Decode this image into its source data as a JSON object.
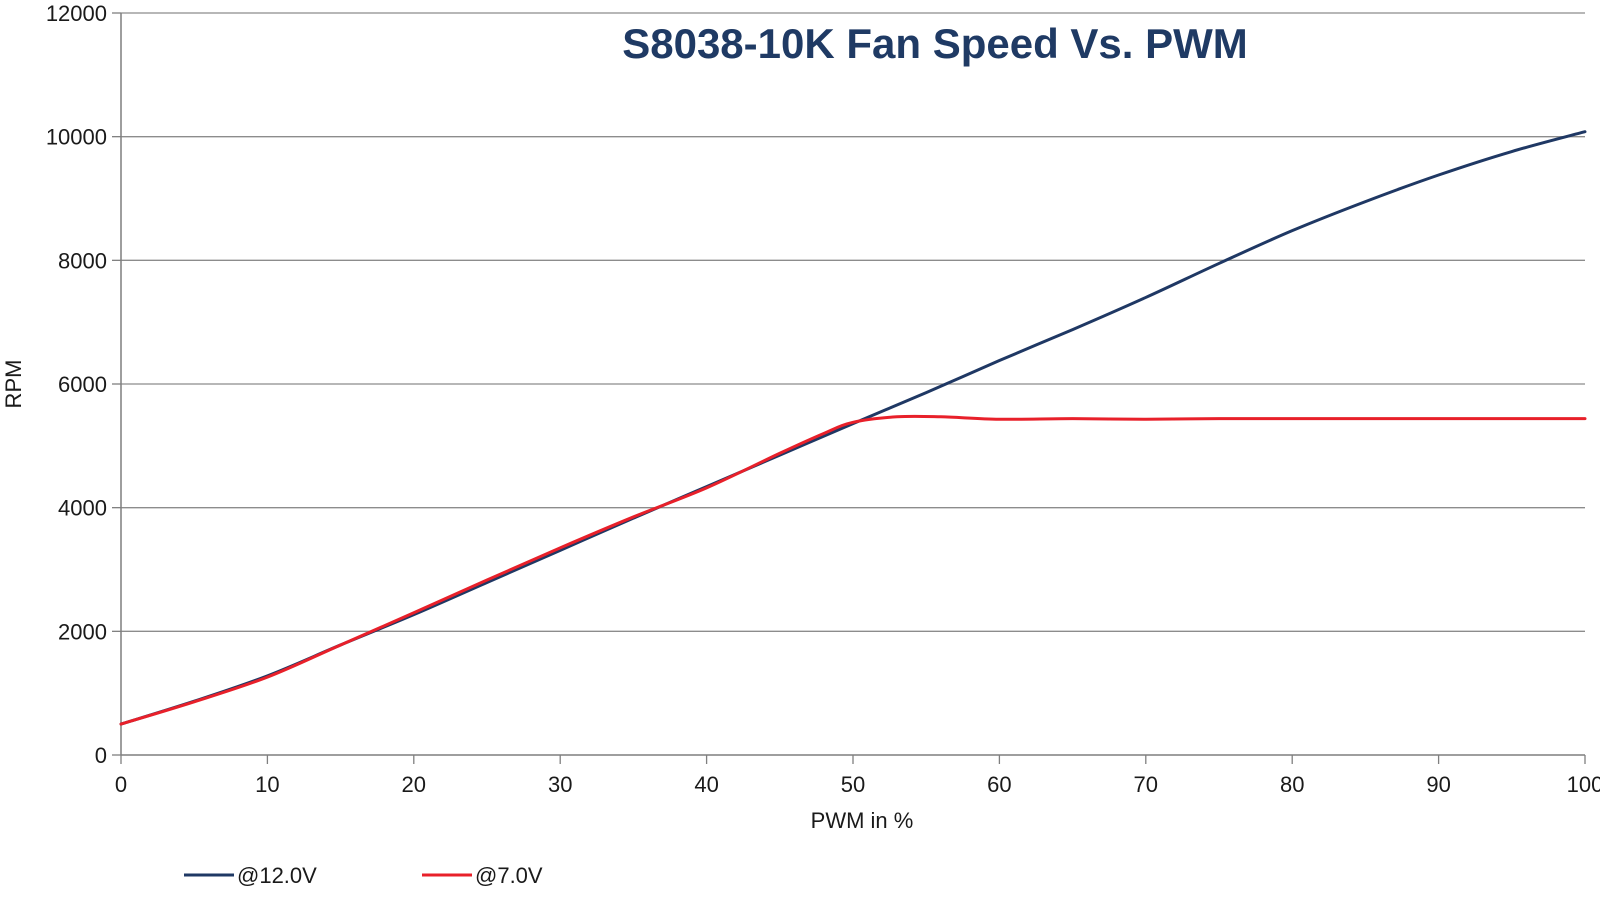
{
  "chart_data": {
    "type": "line",
    "title": "S8038-10K Fan Speed Vs. PWM",
    "xlabel": "PWM in %",
    "ylabel": "RPM",
    "xlim": [
      0,
      100
    ],
    "ylim": [
      0,
      12000
    ],
    "xticks": [
      "0",
      "10",
      "20",
      "30",
      "40",
      "50",
      "60",
      "70",
      "80",
      "90",
      "100"
    ],
    "yticks": [
      "0",
      "2000",
      "4000",
      "6000",
      "8000",
      "10000",
      "12000"
    ],
    "grid": "horizontal",
    "legend_position": "bottom-left",
    "series": [
      {
        "name": "@12.0V",
        "color": "#1f3864",
        "x": [
          0,
          5,
          10,
          15,
          20,
          25,
          30,
          35,
          40,
          45,
          50,
          55,
          60,
          65,
          70,
          75,
          80,
          85,
          90,
          95,
          100
        ],
        "y": [
          500,
          870,
          1280,
          1780,
          2270,
          2790,
          3310,
          3830,
          4340,
          4850,
          5360,
          5860,
          6380,
          6880,
          7400,
          7950,
          8480,
          8950,
          9380,
          9760,
          10080
        ]
      },
      {
        "name": "@7.0V",
        "color": "#e8202a",
        "x": [
          0,
          5,
          10,
          15,
          20,
          25,
          30,
          35,
          40,
          45,
          48,
          50,
          53,
          56,
          60,
          65,
          70,
          75,
          80,
          85,
          90,
          95,
          100
        ],
        "y": [
          500,
          860,
          1260,
          1780,
          2300,
          2830,
          3350,
          3850,
          4320,
          4880,
          5200,
          5380,
          5470,
          5470,
          5430,
          5440,
          5430,
          5440,
          5440,
          5440,
          5440,
          5440,
          5440
        ]
      }
    ]
  }
}
